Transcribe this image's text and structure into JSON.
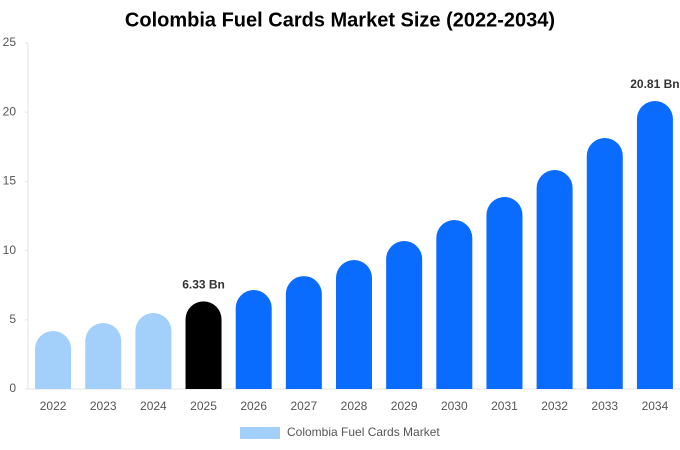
{
  "chart_data": {
    "type": "bar",
    "title": "Colombia Fuel Cards Market Size (2022-2034)",
    "categories": [
      "2022",
      "2023",
      "2024",
      "2025",
      "2026",
      "2027",
      "2028",
      "2029",
      "2030",
      "2031",
      "2032",
      "2033",
      "2034"
    ],
    "series": [
      {
        "name": "Colombia Fuel Cards Market",
        "color": "#a3cffb",
        "colors": [
          "#a3cffb",
          "#a3cffb",
          "#a3cffb",
          "#000000",
          "#0a6cff",
          "#0a6cff",
          "#0a6cff",
          "#0a6cff",
          "#0a6cff",
          "#0a6cff",
          "#0a6cff",
          "#0a6cff",
          "#0a6cff"
        ],
        "values": [
          4.19,
          4.77,
          5.49,
          6.33,
          7.15,
          8.16,
          9.32,
          10.69,
          12.21,
          13.87,
          15.82,
          18.14,
          20.81
        ],
        "value_labels": [
          null,
          null,
          null,
          "6.33 Bn",
          null,
          null,
          null,
          null,
          null,
          null,
          null,
          null,
          "20.81 Bn"
        ]
      }
    ],
    "ylim": [
      0,
      25
    ],
    "yticks": [
      0,
      5,
      10,
      15,
      20,
      25
    ],
    "legend": "bottom"
  }
}
